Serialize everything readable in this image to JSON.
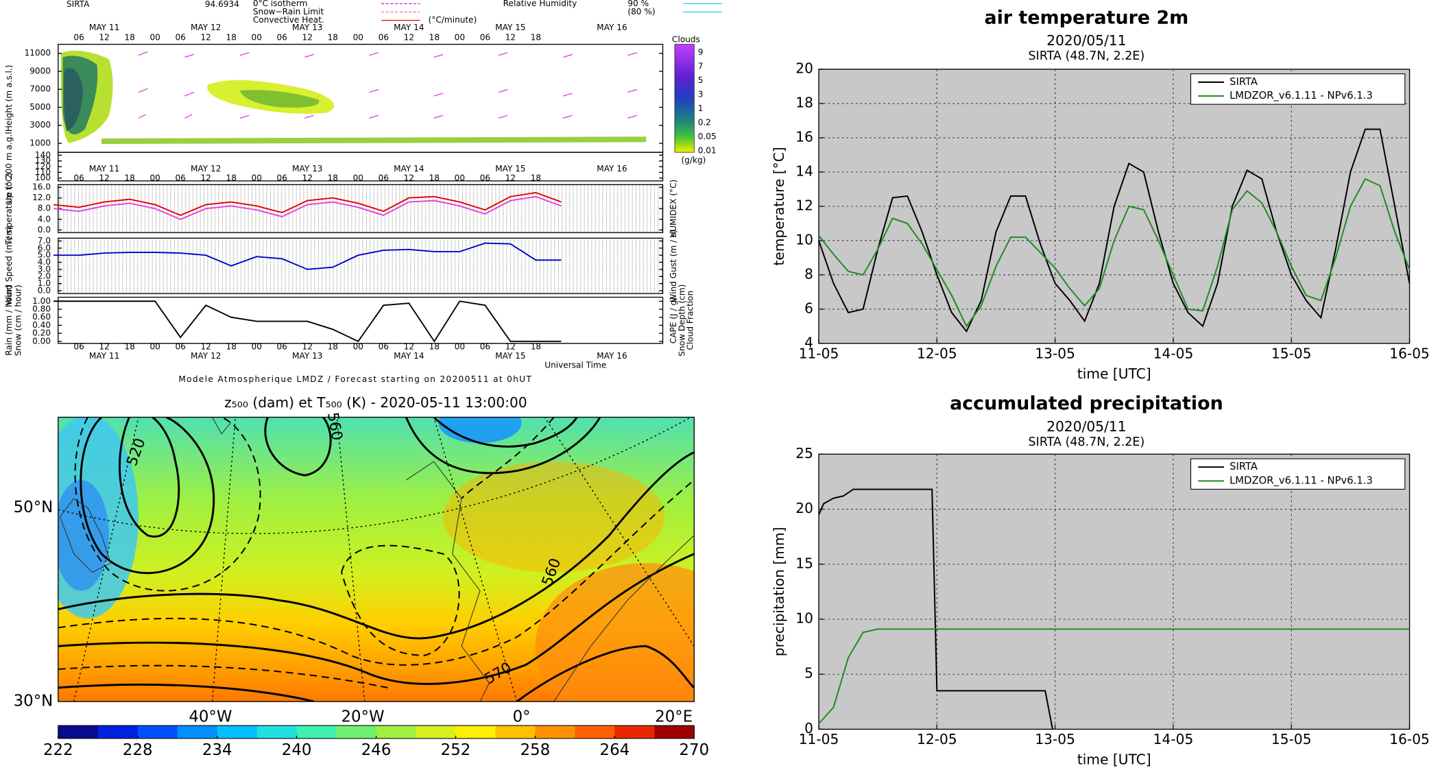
{
  "chart_data": [
    {
      "type": "meteogram",
      "station": "SIRTA",
      "code": "94.6934",
      "legend": [
        {
          "name": "0°C isotherm",
          "color": "#e000e0"
        },
        {
          "name": "Snow−Rain Limit",
          "color": "#ff60c0"
        },
        {
          "name": "Convective Heat.",
          "color": "#e00000"
        }
      ],
      "legend_unit": "(°C/minute)",
      "rh_name": "Relative Humidity",
      "rh_levels": [
        "90 %",
        "(80 %)"
      ],
      "days": [
        "MAY 11",
        "MAY 12",
        "MAY 13",
        "MAY 14",
        "MAY 15",
        "MAY 16"
      ],
      "hours": [
        "06",
        "12",
        "18",
        "00"
      ],
      "x_label": "Universal Time",
      "footer": "Modele Atmospherique LMDZ / Forecast starting on 20200511 at 0hUT",
      "clouds_title": "Clouds",
      "clouds_unit": "(g/kg)",
      "clouds_levels": [
        9,
        7,
        5,
        3,
        1,
        0.2,
        0.05,
        0.01
      ],
      "x": [
        0,
        6,
        12,
        18,
        24,
        30,
        36,
        42,
        48,
        54,
        60,
        66,
        72,
        78,
        84,
        90,
        96,
        102,
        108,
        114,
        120
      ],
      "panels": [
        {
          "ylabels": [
            "Height (m a.s.l.)"
          ],
          "ylabel_colors": [
            "#000000"
          ],
          "ylim": [
            0,
            12000
          ],
          "yticks": [
            1000,
            3000,
            5000,
            7000,
            9000,
            11000
          ]
        },
        {
          "ylabels": [
            "Up to 200 m a.g.l."
          ],
          "ylabel_colors": [
            "#000000"
          ],
          "ylim": [
            95,
            145
          ],
          "yticks": [
            100,
            110,
            120,
            130,
            140
          ]
        },
        {
          "ylabels": [
            "Temperature (°C)"
          ],
          "ylabel_colors": [
            "#e00000"
          ],
          "y2labels": [
            "HUMIDEX (°C)"
          ],
          "y2label_colors": [
            "#e000e0"
          ],
          "ylim": [
            -1,
            17
          ],
          "yticks": [
            {
              "value": 0,
              "label": "0.0"
            },
            {
              "value": 4,
              "label": "4.0"
            },
            {
              "value": 8,
              "label": "8.0"
            },
            {
              "value": 12,
              "label": "12.0"
            },
            {
              "value": 16,
              "label": "16.0"
            }
          ],
          "series": [
            {
              "color": "#e00000",
              "values": [
                9.5,
                8.5,
                10.5,
                11.5,
                9.5,
                5.5,
                9.5,
                10.5,
                9.0,
                6.5,
                11.0,
                12.0,
                10.0,
                7.0,
                12.0,
                12.5,
                10.5,
                7.5,
                12.5,
                14.0,
                10.5
              ]
            },
            {
              "color": "#e040e0",
              "values": [
                8.0,
                7.0,
                9.0,
                10.0,
                8.0,
                4.0,
                8.0,
                9.0,
                7.5,
                5.0,
                9.5,
                10.5,
                8.5,
                5.5,
                10.5,
                11.0,
                9.0,
                6.0,
                11.0,
                12.5,
                9.0
              ]
            }
          ]
        },
        {
          "ylabels": [
            "Wind Speed (m / s)"
          ],
          "ylabel_colors": [
            "#0000cc"
          ],
          "y2labels": [
            "Wind Gust (m / s)"
          ],
          "y2label_colors": [
            "#e000e0"
          ],
          "ylim": [
            -0.4,
            7.4
          ],
          "yticks": [
            {
              "value": 0,
              "label": "0.0"
            },
            {
              "value": 1,
              "label": "1.0"
            },
            {
              "value": 2,
              "label": "2.0"
            },
            {
              "value": 3,
              "label": "3.0"
            },
            {
              "value": 4,
              "label": "4.0"
            },
            {
              "value": 5,
              "label": "5.0"
            },
            {
              "value": 6,
              "label": "6.0"
            },
            {
              "value": 7,
              "label": "7.0"
            }
          ],
          "series": [
            {
              "color": "#0000cc",
              "values": [
                5.0,
                5.0,
                5.3,
                5.4,
                5.4,
                5.3,
                5.0,
                3.5,
                4.8,
                4.5,
                3.0,
                3.3,
                5.0,
                5.7,
                5.8,
                5.5,
                5.5,
                6.7,
                6.6,
                4.3,
                4.3
              ]
            }
          ]
        },
        {
          "ylabels": [
            "Rain (mm / hour)",
            "Snow (cm / hour)"
          ],
          "ylabel_colors": [
            "#00b000",
            "#0000cc"
          ],
          "y2labels": [
            "CAPE (J / g)",
            "Snow Depth (cm)",
            "Cloud Fraction"
          ],
          "y2label_colors": [
            "#e00000",
            "#0000cc",
            "#000000"
          ],
          "ylim": [
            -0.05,
            1.1
          ],
          "yticks": [
            {
              "value": 0,
              "label": "0.00"
            },
            {
              "value": 0.2,
              "label": "0.20"
            },
            {
              "value": 0.4,
              "label": "0.40"
            },
            {
              "value": 0.6,
              "label": "0.60"
            },
            {
              "value": 0.8,
              "label": "0.80"
            },
            {
              "value": 1,
              "label": "1.00"
            }
          ],
          "series": [
            {
              "color": "#000000",
              "values": [
                1.0,
                1.0,
                1.0,
                1.0,
                1.0,
                0.1,
                0.9,
                0.6,
                0.5,
                0.5,
                0.5,
                0.3,
                0.0,
                0.9,
                0.95,
                0.0,
                1.0,
                0.9,
                0.0,
                0.0,
                0.0
              ]
            }
          ]
        }
      ]
    },
    {
      "type": "line",
      "title": "air temperature 2m",
      "subtitle": "2020/05/11",
      "station": "SIRTA (48.7N, 2.2E)",
      "y_label": "temperature [°C]",
      "x_label": "time [UTC]",
      "legend": "upper right",
      "grid": true,
      "xlim": [
        0,
        120
      ],
      "xticks": [
        {
          "value": 0,
          "label": "11-05"
        },
        {
          "value": 24,
          "label": "12-05"
        },
        {
          "value": 48,
          "label": "13-05"
        },
        {
          "value": 72,
          "label": "14-05"
        },
        {
          "value": 96,
          "label": "15-05"
        },
        {
          "value": 120,
          "label": "16-05"
        }
      ],
      "ylim": [
        4,
        20
      ],
      "yticks": [
        4,
        6,
        8,
        10,
        12,
        14,
        16,
        18,
        20
      ],
      "series": [
        {
          "name": "SIRTA",
          "color": "#000000",
          "x": [
            0,
            3,
            6,
            9,
            12,
            15,
            18,
            21,
            24,
            27,
            30,
            33,
            36,
            39,
            42,
            45,
            48,
            51,
            54,
            57,
            60,
            63,
            66,
            69,
            72,
            75,
            78,
            81,
            84,
            87,
            90,
            93,
            96,
            99,
            102,
            105,
            108,
            111,
            114,
            117,
            120
          ],
          "values": [
            10.0,
            7.5,
            5.8,
            6.0,
            9.5,
            12.5,
            12.6,
            10.5,
            8.0,
            5.8,
            4.7,
            6.5,
            10.5,
            12.6,
            12.6,
            9.8,
            7.5,
            6.5,
            5.3,
            7.5,
            12.0,
            14.5,
            14.0,
            10.5,
            7.5,
            5.8,
            5.0,
            7.5,
            12.0,
            14.1,
            13.6,
            10.5,
            8.0,
            6.5,
            5.5,
            9.5,
            14.0,
            16.5,
            16.5,
            12.0,
            7.5
          ]
        },
        {
          "name": "LMDZOR_v6.1.11 - NPv6.1.3",
          "color": "#228b22",
          "x": [
            0,
            3,
            6,
            9,
            12,
            15,
            18,
            21,
            24,
            27,
            30,
            33,
            36,
            39,
            42,
            45,
            48,
            51,
            54,
            57,
            60,
            63,
            66,
            69,
            72,
            75,
            78,
            81,
            84,
            87,
            90,
            93,
            96,
            99,
            102,
            105,
            108,
            111,
            114,
            117,
            120
          ],
          "values": [
            10.3,
            9.2,
            8.2,
            8.0,
            9.5,
            11.3,
            11.0,
            9.8,
            8.3,
            6.8,
            5.0,
            6.2,
            8.5,
            10.2,
            10.2,
            9.3,
            8.4,
            7.2,
            6.2,
            7.2,
            10.0,
            12.0,
            11.8,
            10.0,
            8.0,
            6.0,
            5.9,
            8.5,
            11.8,
            12.9,
            12.2,
            10.5,
            8.5,
            6.8,
            6.5,
            9.0,
            12.0,
            13.6,
            13.2,
            10.5,
            8.3
          ]
        }
      ]
    },
    {
      "type": "line",
      "title": "accumulated precipitation",
      "subtitle": "2020/05/11",
      "station": "SIRTA (48.7N, 2.2E)",
      "y_label": "precipitation [mm]",
      "x_label": "time [UTC]",
      "legend": "upper right",
      "grid": true,
      "xlim": [
        0,
        120
      ],
      "xticks": [
        {
          "value": 0,
          "label": "11-05"
        },
        {
          "value": 24,
          "label": "12-05"
        },
        {
          "value": 48,
          "label": "13-05"
        },
        {
          "value": 72,
          "label": "14-05"
        },
        {
          "value": 96,
          "label": "15-05"
        },
        {
          "value": 120,
          "label": "16-05"
        }
      ],
      "ylim": [
        0,
        25
      ],
      "yticks": [
        0,
        5,
        10,
        15,
        20,
        25
      ],
      "series": [
        {
          "name": "SIRTA",
          "color": "#000000",
          "x": [
            0,
            1,
            3,
            5,
            7,
            9,
            23,
            24,
            46,
            47.5
          ],
          "values": [
            19.5,
            20.5,
            21.0,
            21.2,
            21.8,
            21.8,
            21.8,
            3.5,
            3.5,
            0
          ]
        },
        {
          "name": "LMDZOR_v6.1.11 - NPv6.1.3",
          "color": "#228b22",
          "x": [
            0,
            3,
            6,
            9,
            12,
            15,
            120
          ],
          "values": [
            0.5,
            2.0,
            6.5,
            8.8,
            9.1,
            9.1,
            9.1
          ]
        }
      ]
    },
    {
      "type": "map",
      "title": "z₅₀₀ (dam) et T₅₀₀ (K) - 2020-05-11 13:00:00",
      "lat_labels": [
        "50°N",
        "30°N"
      ],
      "lon_labels": [
        "40°W",
        "20°W",
        "0°",
        "20°E"
      ],
      "contour_labels": [
        "520",
        "560",
        "560",
        "570"
      ],
      "colorbar": {
        "ticks": [
          222,
          228,
          234,
          240,
          246,
          252,
          258,
          264,
          270
        ],
        "colors": [
          "#0a0a8c",
          "#0020e0",
          "#0050ff",
          "#0090ff",
          "#00c0ff",
          "#20e0e0",
          "#40f0b0",
          "#70f070",
          "#a0f040",
          "#d8f020",
          "#fff000",
          "#ffc000",
          "#ff9000",
          "#ff6000",
          "#e82800",
          "#a00000"
        ]
      }
    }
  ]
}
